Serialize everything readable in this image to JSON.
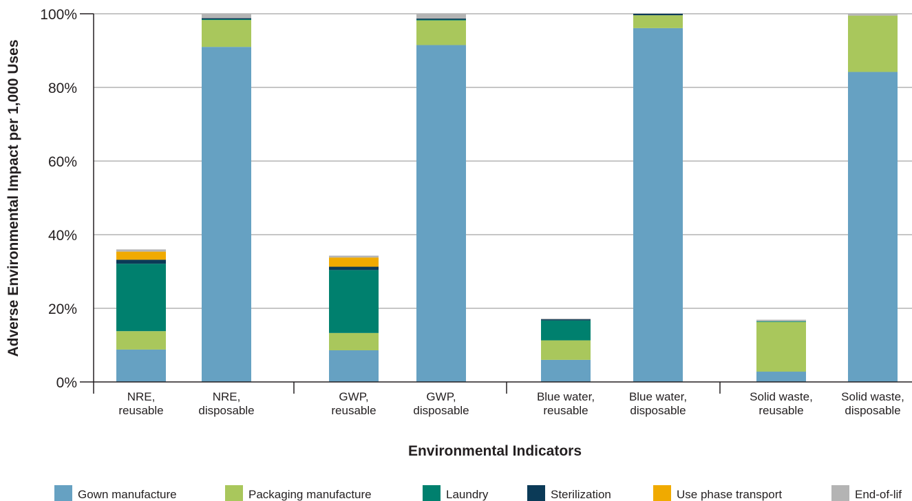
{
  "chart_data": {
    "type": "bar",
    "stacked": true,
    "xlabel": "Environmental Indicators",
    "ylabel": "Adverse Environmental Impact per 1,000 Uses",
    "ylim": [
      0,
      100
    ],
    "yticks": [
      "0%",
      "20%",
      "40%",
      "60%",
      "80%",
      "100%"
    ],
    "grid": true,
    "legend_position": "bottom",
    "categories": [
      [
        "NRE,",
        "reusable"
      ],
      [
        "NRE,",
        "disposable"
      ],
      [
        "GWP,",
        "reusable"
      ],
      [
        "GWP,",
        "disposable"
      ],
      [
        "Blue water,",
        "reusable"
      ],
      [
        "Blue water,",
        "disposable"
      ],
      [
        "Solid waste,",
        "reusable"
      ],
      [
        "Solid waste,",
        "disposable"
      ]
    ],
    "series": [
      {
        "name": "Gown manufacture",
        "color": "#66a1c2",
        "values": [
          8.8,
          91.0,
          8.6,
          91.5,
          6.0,
          96.1,
          2.8,
          84.2
        ]
      },
      {
        "name": "Packaging manufacture",
        "color": "#a9c75c",
        "values": [
          5.0,
          7.3,
          4.7,
          6.7,
          5.3,
          3.5,
          13.5,
          15.3
        ]
      },
      {
        "name": "Laundry",
        "color": "#00806e",
        "values": [
          18.3,
          0.2,
          17.1,
          0.2,
          5.4,
          0.0,
          0.2,
          0.0
        ]
      },
      {
        "name": "Sterilization",
        "color": "#0b3a57",
        "values": [
          1.1,
          0.3,
          0.9,
          0.3,
          0.3,
          0.4,
          0.0,
          0.0
        ]
      },
      {
        "name": "Use phase transport",
        "color": "#f0aa00",
        "values": [
          2.2,
          0.0,
          2.5,
          0.0,
          0.0,
          0.0,
          0.0,
          0.0
        ]
      },
      {
        "name": "End-of-lif",
        "color": "#b4b4b4",
        "values": [
          0.6,
          1.2,
          0.5,
          1.3,
          0.2,
          0.0,
          0.4,
          0.5
        ]
      }
    ]
  }
}
